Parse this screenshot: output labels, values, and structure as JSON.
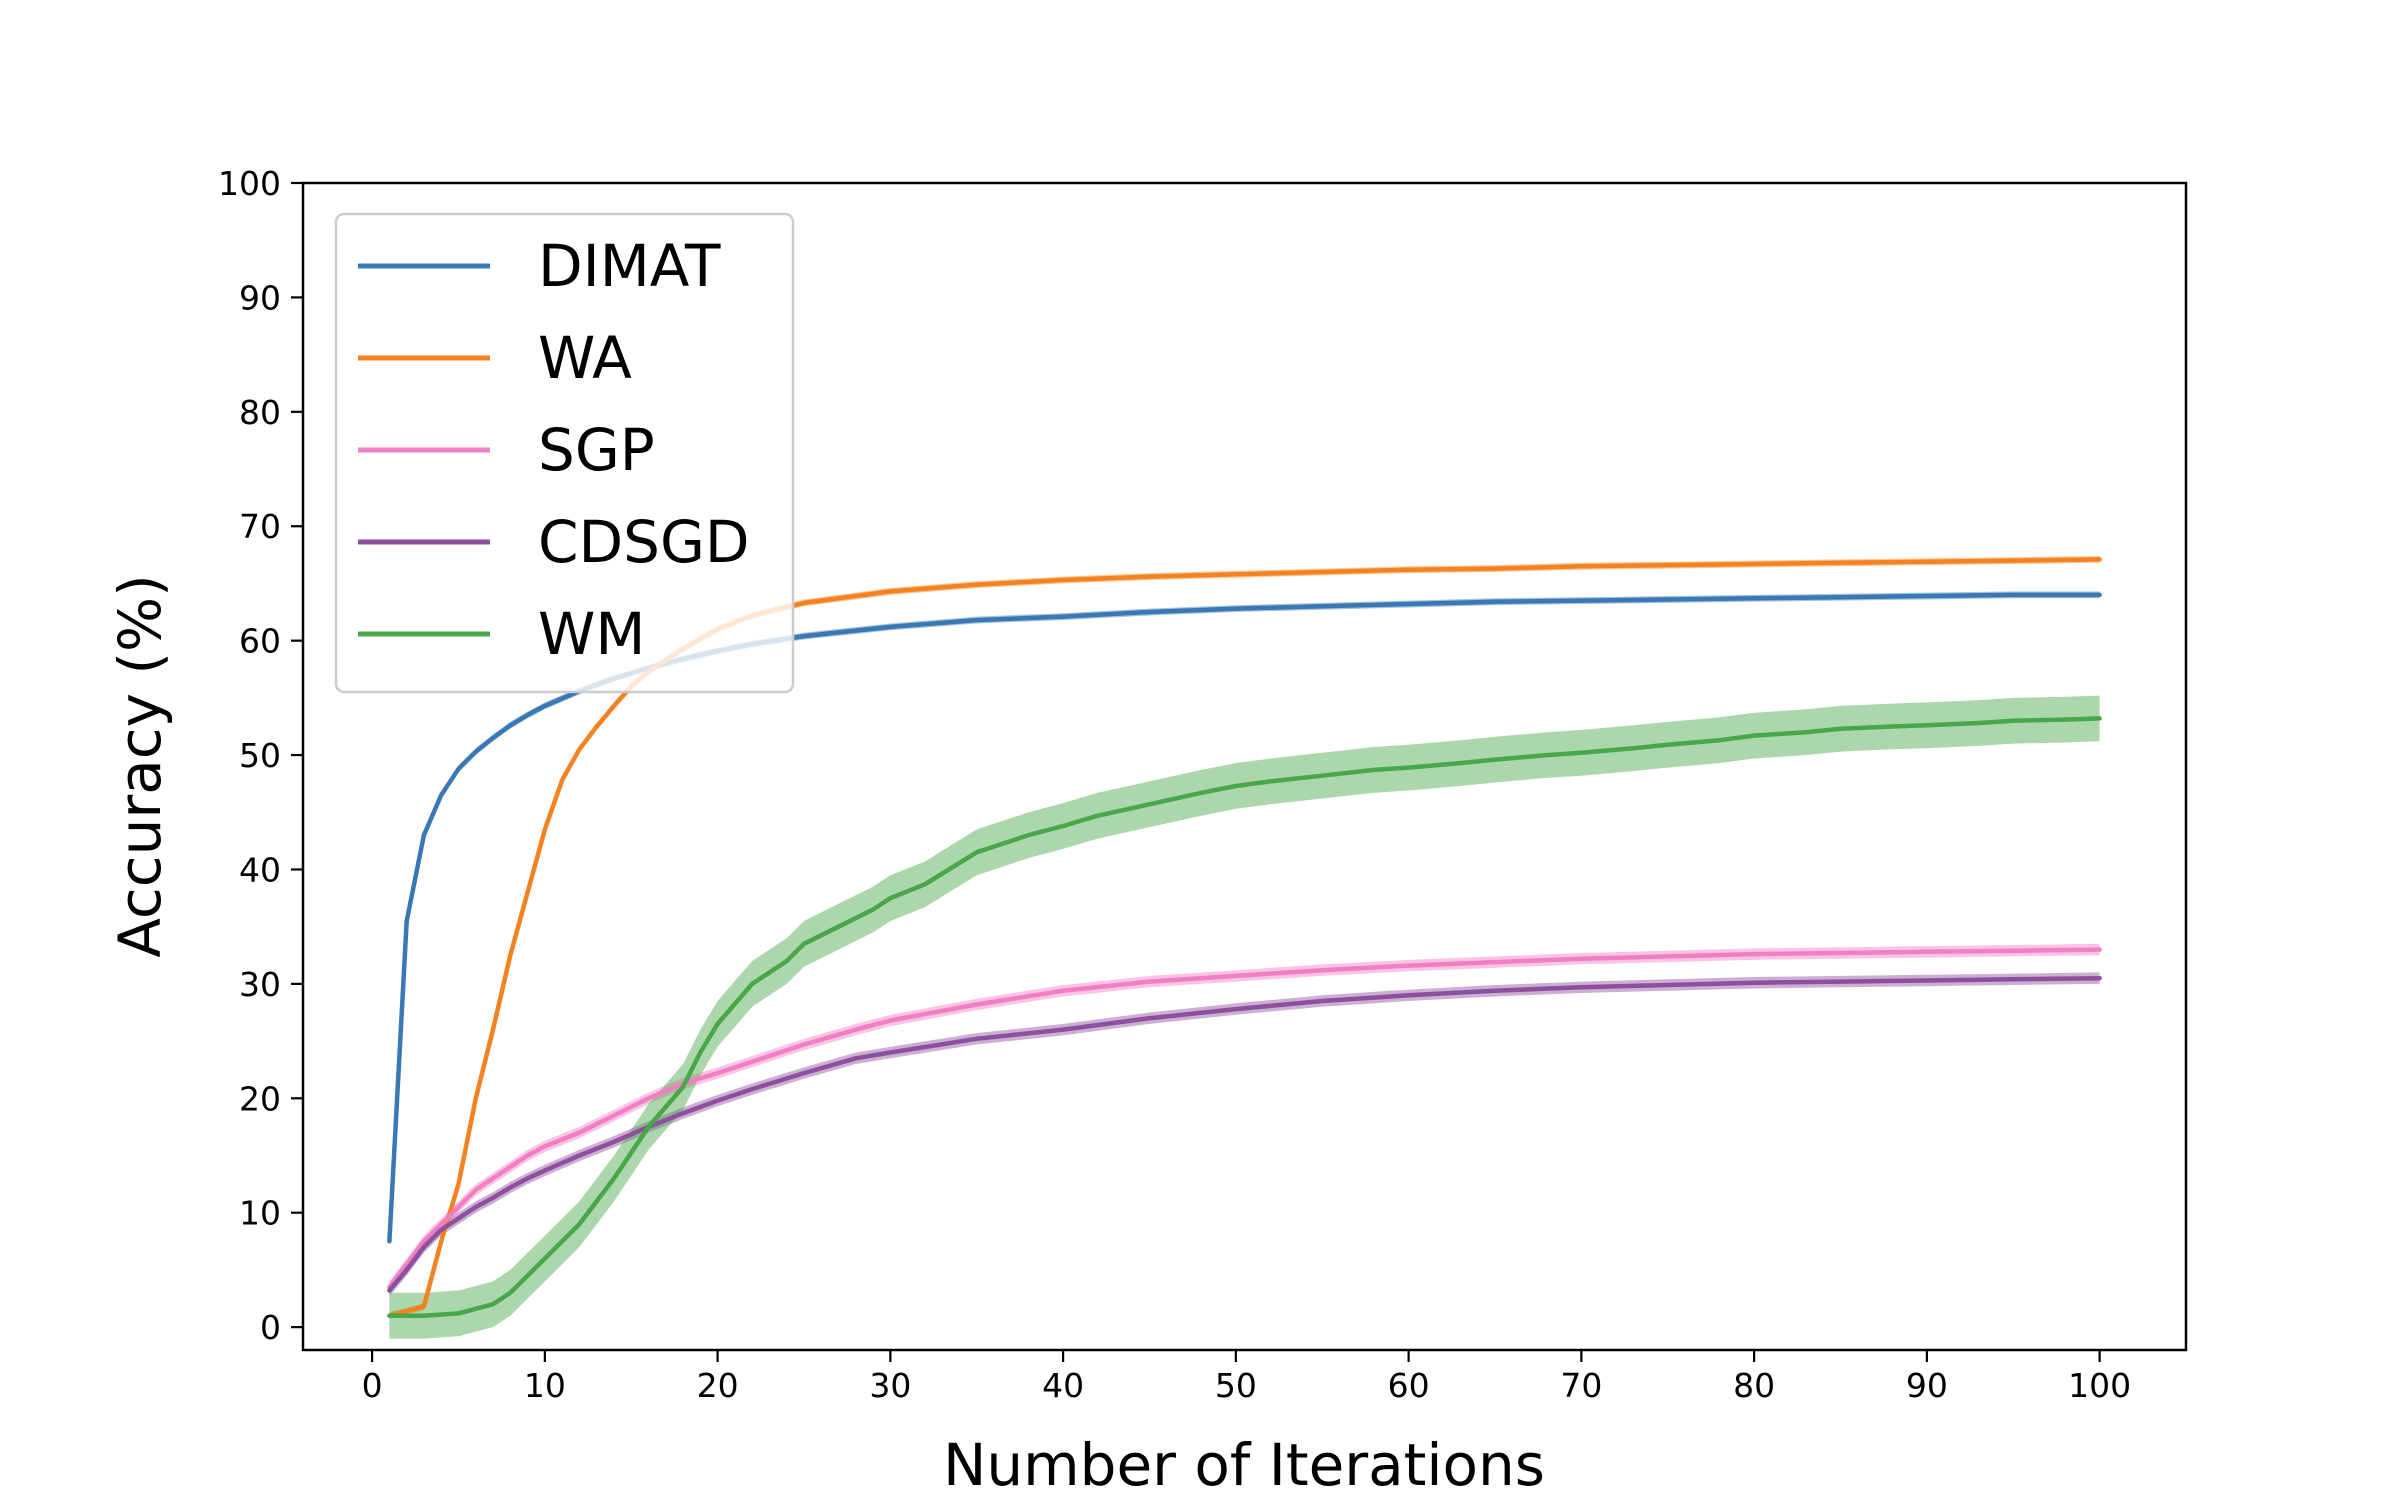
{
  "chart_data": {
    "type": "line",
    "title": "",
    "xlabel": "Number of Iterations",
    "ylabel": "Accuracy (%)",
    "xlim": [
      -4,
      105
    ],
    "ylim": [
      -2,
      100
    ],
    "xticks": [
      0,
      10,
      20,
      30,
      40,
      50,
      60,
      70,
      80,
      90,
      100
    ],
    "yticks": [
      0,
      10,
      20,
      30,
      40,
      50,
      60,
      70,
      80,
      90,
      100
    ],
    "grid": false,
    "legend_position": "top-left",
    "series": [
      {
        "name": "DIMAT",
        "color": "#3a78b5",
        "band": 0.3,
        "points": [
          [
            1,
            7.5
          ],
          [
            2,
            35.5
          ],
          [
            3,
            43
          ],
          [
            4,
            46.5
          ],
          [
            5,
            48.8
          ],
          [
            6,
            50.3
          ],
          [
            7,
            51.5
          ],
          [
            8,
            52.6
          ],
          [
            9,
            53.5
          ],
          [
            10,
            54.3
          ],
          [
            12,
            55.6
          ],
          [
            14,
            56.7
          ],
          [
            16,
            57.6
          ],
          [
            18,
            58.4
          ],
          [
            20,
            59.1
          ],
          [
            22,
            59.7
          ],
          [
            25,
            60.4
          ],
          [
            30,
            61.2
          ],
          [
            35,
            61.8
          ],
          [
            40,
            62.1
          ],
          [
            45,
            62.5
          ],
          [
            50,
            62.8
          ],
          [
            55,
            63.0
          ],
          [
            60,
            63.2
          ],
          [
            65,
            63.4
          ],
          [
            70,
            63.5
          ],
          [
            75,
            63.6
          ],
          [
            80,
            63.7
          ],
          [
            85,
            63.8
          ],
          [
            90,
            63.9
          ],
          [
            95,
            64.0
          ],
          [
            100,
            64.0
          ]
        ]
      },
      {
        "name": "WA",
        "color": "#f58220",
        "band": 0.3,
        "points": [
          [
            1,
            1
          ],
          [
            2,
            1.4
          ],
          [
            3,
            1.8
          ],
          [
            4,
            7.5
          ],
          [
            5,
            12.5
          ],
          [
            6,
            20
          ],
          [
            7,
            26
          ],
          [
            8,
            32.5
          ],
          [
            9,
            38
          ],
          [
            10,
            43.5
          ],
          [
            11,
            47.8
          ],
          [
            12,
            50.5
          ],
          [
            13,
            52.5
          ],
          [
            14,
            54.3
          ],
          [
            15,
            56
          ],
          [
            16,
            57.3
          ],
          [
            18,
            59.3
          ],
          [
            20,
            61
          ],
          [
            22,
            62.2
          ],
          [
            25,
            63.3
          ],
          [
            28,
            63.9
          ],
          [
            30,
            64.3
          ],
          [
            35,
            64.9
          ],
          [
            40,
            65.3
          ],
          [
            45,
            65.6
          ],
          [
            50,
            65.8
          ],
          [
            55,
            66.0
          ],
          [
            60,
            66.2
          ],
          [
            65,
            66.3
          ],
          [
            70,
            66.5
          ],
          [
            75,
            66.6
          ],
          [
            80,
            66.7
          ],
          [
            85,
            66.8
          ],
          [
            90,
            66.9
          ],
          [
            95,
            67.0
          ],
          [
            100,
            67.1
          ]
        ]
      },
      {
        "name": "SGP",
        "color": "#f27ec3",
        "band": 0.5,
        "points": [
          [
            1,
            3.5
          ],
          [
            2,
            5.5
          ],
          [
            3,
            7.5
          ],
          [
            4,
            9
          ],
          [
            5,
            10.5
          ],
          [
            6,
            12
          ],
          [
            7,
            13
          ],
          [
            8,
            14
          ],
          [
            9,
            15
          ],
          [
            10,
            15.8
          ],
          [
            12,
            17
          ],
          [
            14,
            18.5
          ],
          [
            16,
            20
          ],
          [
            18,
            21.3
          ],
          [
            20,
            22.2
          ],
          [
            22,
            23.2
          ],
          [
            25,
            24.7
          ],
          [
            28,
            26
          ],
          [
            30,
            26.8
          ],
          [
            35,
            28.2
          ],
          [
            40,
            29.4
          ],
          [
            45,
            30.2
          ],
          [
            50,
            30.7
          ],
          [
            55,
            31.2
          ],
          [
            60,
            31.6
          ],
          [
            65,
            31.9
          ],
          [
            70,
            32.2
          ],
          [
            75,
            32.4
          ],
          [
            80,
            32.6
          ],
          [
            85,
            32.7
          ],
          [
            90,
            32.8
          ],
          [
            95,
            32.9
          ],
          [
            100,
            33.0
          ]
        ]
      },
      {
        "name": "CDSGD",
        "color": "#8e4f9e",
        "band": 0.5,
        "points": [
          [
            1,
            3.2
          ],
          [
            2,
            5
          ],
          [
            3,
            7
          ],
          [
            4,
            8.5
          ],
          [
            5,
            9.5
          ],
          [
            6,
            10.5
          ],
          [
            7,
            11.3
          ],
          [
            8,
            12.2
          ],
          [
            9,
            13
          ],
          [
            10,
            13.7
          ],
          [
            12,
            15
          ],
          [
            14,
            16.2
          ],
          [
            16,
            17.5
          ],
          [
            18,
            18.7
          ],
          [
            20,
            19.8
          ],
          [
            22,
            20.8
          ],
          [
            25,
            22.2
          ],
          [
            28,
            23.5
          ],
          [
            30,
            24
          ],
          [
            35,
            25.2
          ],
          [
            40,
            26
          ],
          [
            45,
            27
          ],
          [
            50,
            27.8
          ],
          [
            55,
            28.5
          ],
          [
            60,
            29
          ],
          [
            65,
            29.4
          ],
          [
            70,
            29.7
          ],
          [
            75,
            29.9
          ],
          [
            80,
            30.1
          ],
          [
            85,
            30.2
          ],
          [
            90,
            30.3
          ],
          [
            95,
            30.4
          ],
          [
            100,
            30.5
          ]
        ]
      },
      {
        "name": "WM",
        "color": "#48a748",
        "band": 2.0,
        "points": [
          [
            1,
            1
          ],
          [
            3,
            1
          ],
          [
            5,
            1.2
          ],
          [
            7,
            2
          ],
          [
            8,
            3
          ],
          [
            9,
            4.5
          ],
          [
            10,
            6
          ],
          [
            12,
            9
          ],
          [
            14,
            13
          ],
          [
            16,
            17.5
          ],
          [
            18,
            21
          ],
          [
            19,
            24
          ],
          [
            20,
            26.5
          ],
          [
            22,
            30
          ],
          [
            24,
            32
          ],
          [
            25,
            33.5
          ],
          [
            27,
            35
          ],
          [
            29,
            36.5
          ],
          [
            30,
            37.5
          ],
          [
            32,
            38.7
          ],
          [
            35,
            41.5
          ],
          [
            38,
            43
          ],
          [
            40,
            43.8
          ],
          [
            42,
            44.7
          ],
          [
            45,
            45.7
          ],
          [
            48,
            46.7
          ],
          [
            50,
            47.3
          ],
          [
            52,
            47.7
          ],
          [
            55,
            48.2
          ],
          [
            58,
            48.7
          ],
          [
            60,
            48.9
          ],
          [
            63,
            49.3
          ],
          [
            65,
            49.6
          ],
          [
            68,
            50
          ],
          [
            70,
            50.2
          ],
          [
            73,
            50.6
          ],
          [
            75,
            50.9
          ],
          [
            78,
            51.3
          ],
          [
            80,
            51.7
          ],
          [
            83,
            52
          ],
          [
            85,
            52.3
          ],
          [
            88,
            52.5
          ],
          [
            90,
            52.6
          ],
          [
            93,
            52.8
          ],
          [
            95,
            53
          ],
          [
            98,
            53.1
          ],
          [
            100,
            53.2
          ]
        ]
      }
    ]
  }
}
